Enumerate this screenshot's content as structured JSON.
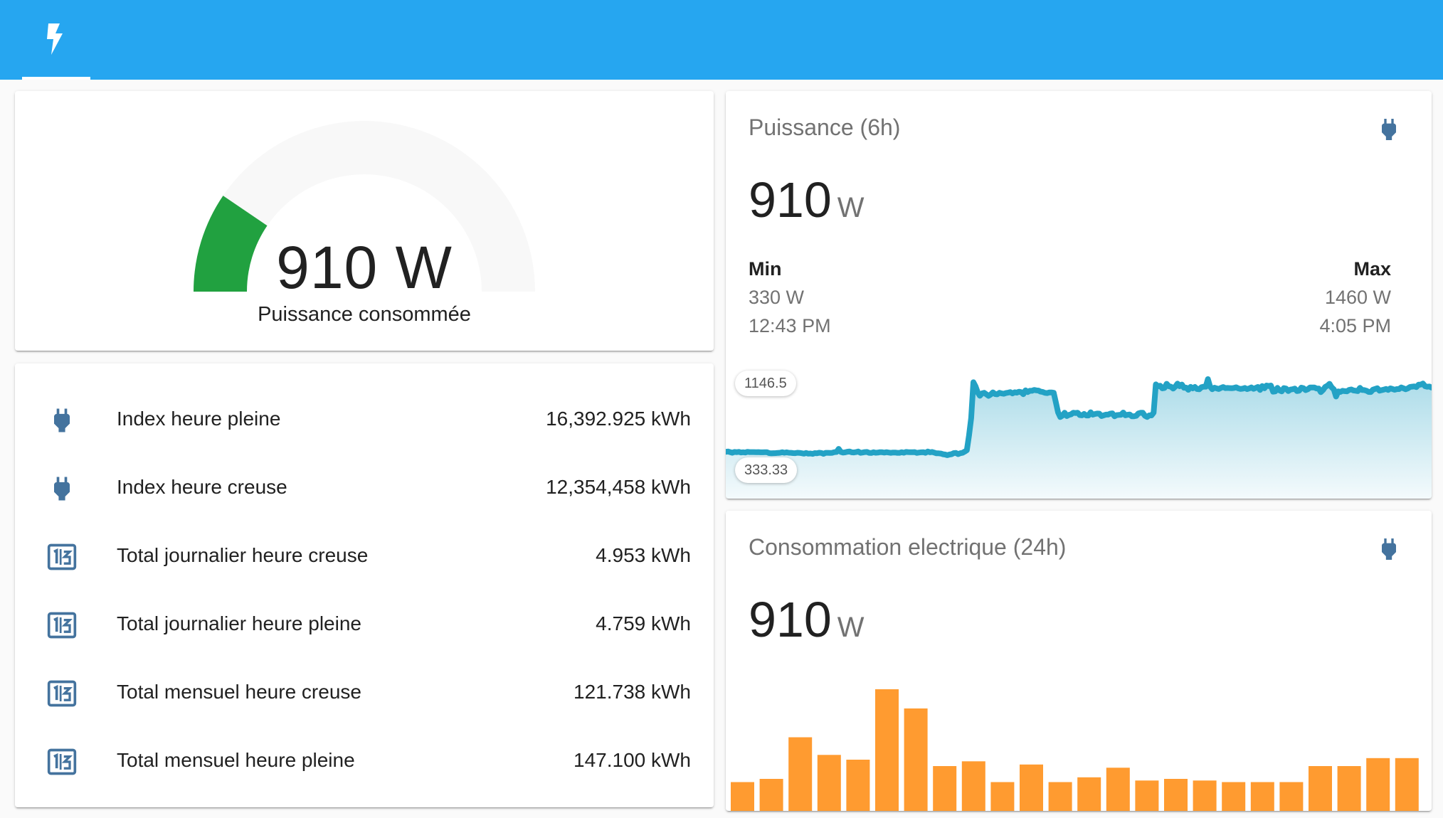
{
  "header": {
    "tab_icon": "flash-icon"
  },
  "gauge": {
    "value_text": "910 W",
    "name": "Puissance consommée",
    "fraction": 0.19,
    "color": "#21a140",
    "track_color": "#f8f8f8"
  },
  "entities": [
    {
      "icon": "power-plug-icon",
      "name": "Index heure pleine",
      "state": "16,392.925 kWh"
    },
    {
      "icon": "power-plug-icon",
      "name": "Index heure creuse",
      "state": "12,354,458 kWh"
    },
    {
      "icon": "counter-icon",
      "name": "Total journalier heure creuse",
      "state": "4.953 kWh"
    },
    {
      "icon": "counter-icon",
      "name": "Total journalier heure pleine",
      "state": "4.759 kWh"
    },
    {
      "icon": "counter-icon",
      "name": "Total mensuel heure creuse",
      "state": "121.738 kWh"
    },
    {
      "icon": "counter-icon",
      "name": "Total mensuel heure pleine",
      "state": "147.100 kWh"
    }
  ],
  "power_card": {
    "title": "Puissance (6h)",
    "icon": "power-plug-icon",
    "value": "910",
    "unit": "W",
    "min_label": "Min",
    "min_value": "330 W",
    "min_time": "12:43 PM",
    "max_label": "Max",
    "max_value": "1460 W",
    "max_time": "4:05 PM",
    "y_upper_label": "1146.5",
    "y_lower_label": "333.33",
    "line_color": "#23a2c5"
  },
  "conso_card": {
    "title": "Consommation electrique (24h)",
    "icon": "power-plug-icon",
    "value": "910",
    "unit": "W",
    "bar_color": "#ff9b30"
  },
  "chart_data": [
    {
      "type": "area",
      "title": "Puissance (6h)",
      "y_range": [
        333.33,
        1146.5
      ],
      "series": [
        {
          "values": [
            395,
            398,
            392,
            385,
            393,
            391,
            394,
            388,
            390,
            387,
            395,
            392,
            392,
            392,
            390,
            392,
            389,
            389,
            390,
            390,
            381,
            378,
            380,
            381,
            383,
            385,
            390,
            385,
            389,
            385,
            384,
            381,
            380,
            385,
            383,
            379,
            374,
            382,
            374,
            377,
            372,
            381,
            378,
            385,
            382,
            373,
            384,
            384,
            382,
            384,
            391,
            393,
            427,
            393,
            386,
            389,
            396,
            399,
            389,
            388,
            392,
            398,
            384,
            387,
            392,
            393,
            384,
            382,
            390,
            385,
            386,
            391,
            390,
            386,
            391,
            387,
            384,
            387,
            387,
            384,
            384,
            390,
            385,
            393,
            392,
            391,
            391,
            392,
            383,
            387,
            389,
            390,
            384,
            398,
            389,
            393,
            386,
            378,
            378,
            376,
            368,
            365,
            358,
            365,
            369,
            381,
            382,
            370,
            379,
            384,
            397,
            413,
            579,
            771,
            1167,
            1122,
            1055,
            1017,
            1044,
            1050,
            1033,
            1016,
            1031,
            1055,
            1036,
            1033,
            1050,
            1043,
            1039,
            1047,
            1052,
            1057,
            1043,
            1056,
            1052,
            1062,
            1057,
            1034,
            1077,
            1058,
            1072,
            1072,
            1082,
            1077,
            1075,
            1063,
            1059,
            1049,
            1047,
            1054,
            1054,
            1050,
            941,
            833,
            781,
            796,
            829,
            792,
            805,
            811,
            829,
            825,
            829,
            803,
            800,
            816,
            798,
            798,
            834,
            807,
            815,
            820,
            819,
            792,
            800,
            808,
            808,
            818,
            822,
            790,
            802,
            805,
            806,
            831,
            800,
            806,
            809,
            789,
            790,
            794,
            821,
            828,
            828,
            795,
            782,
            799,
            799,
            829,
            1143,
            1122,
            1128,
            1099,
            1104,
            1150,
            1123,
            1117,
            1097,
            1119,
            1152,
            1123,
            1142,
            1106,
            1107,
            1083,
            1116,
            1099,
            1115,
            1092,
            1089,
            1112,
            1118,
            1118,
            1202,
            1119,
            1090,
            1107,
            1099,
            1092,
            1105,
            1114,
            1102,
            1104,
            1102,
            1101,
            1104,
            1111,
            1099,
            1093,
            1096,
            1104,
            1091,
            1098,
            1109,
            1094,
            1104,
            1115,
            1082,
            1125,
            1100,
            1131,
            1125,
            1131,
            1063,
            1065,
            1105,
            1077,
            1066,
            1102,
            1097,
            1069,
            1086,
            1090,
            1097,
            1069,
            1073,
            1107,
            1101,
            1079,
            1090,
            1109,
            1109,
            1109,
            1098,
            1097,
            1057,
            1081,
            1115,
            1128,
            1150,
            1110,
            1088,
            1009,
            1066,
            1060,
            1072,
            1068,
            1066,
            1082,
            1087,
            1076,
            1073,
            1069,
            1105,
            1081,
            1080,
            1073,
            1060,
            1059,
            1085,
            1093,
            1101,
            1074,
            1079,
            1086,
            1093,
            1082,
            1099,
            1092,
            1084,
            1091,
            1091,
            1109,
            1100,
            1090,
            1098,
            1114,
            1118,
            1121,
            1113,
            1140,
            1141,
            1153,
            1123,
            1117,
            1120,
            1108
          ]
        }
      ]
    },
    {
      "type": "bar",
      "title": "Consommation electrique (24h)",
      "y_range": [
        0,
        0.8
      ],
      "series": [
        {
          "values": [
            0.18,
            0.2,
            0.46,
            0.35,
            0.32,
            0.76,
            0.64,
            0.28,
            0.31,
            0.18,
            0.29,
            0.18,
            0.21,
            0.27,
            0.19,
            0.2,
            0.19,
            0.18,
            0.18,
            0.18,
            0.28,
            0.28,
            0.33,
            0.33
          ]
        }
      ]
    }
  ]
}
